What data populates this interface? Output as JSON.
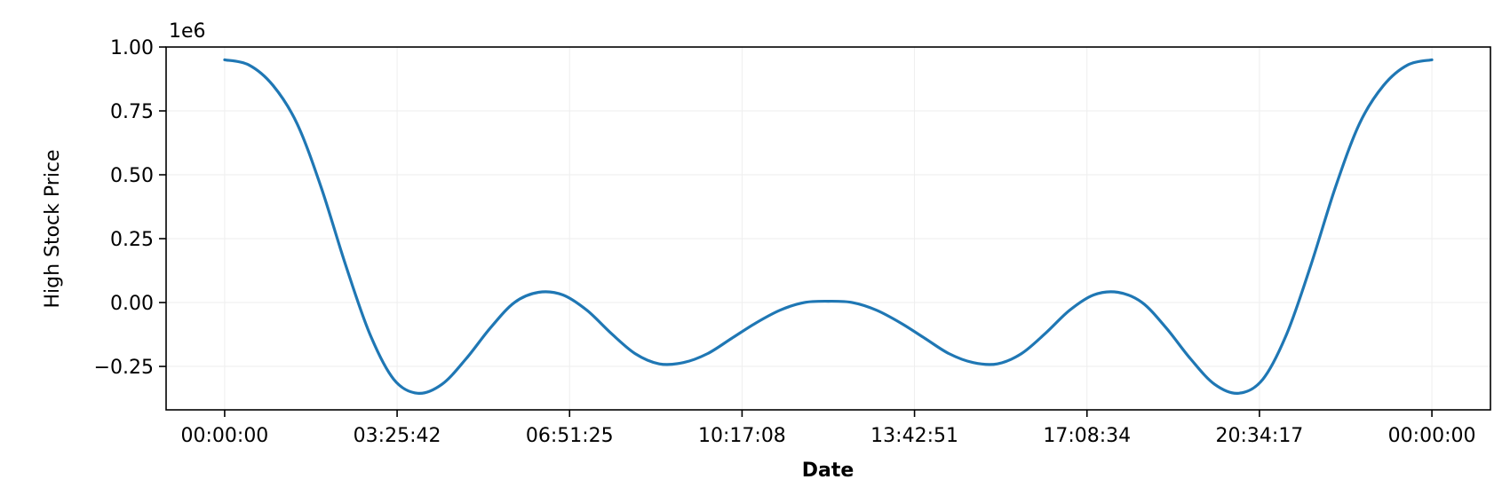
{
  "chart_data": {
    "type": "line",
    "title": "",
    "xlabel": "Date",
    "ylabel": "High Stock Price",
    "offset_text": "1e6",
    "grid": true,
    "xlim": [
      -0.0485,
      1.0485
    ],
    "ylim": [
      -0.42,
      1.0
    ],
    "x_ticks": [
      0,
      0.142857,
      0.285714,
      0.428571,
      0.571429,
      0.714286,
      0.857143,
      1.0
    ],
    "x_tick_labels": [
      "00:00:00",
      "03:25:42",
      "06:51:25",
      "10:17:08",
      "13:42:51",
      "17:08:34",
      "20:34:17",
      "00:00:00"
    ],
    "y_ticks": [
      -0.25,
      0.0,
      0.25,
      0.5,
      0.75,
      1.0
    ],
    "y_tick_labels": [
      "−0.25",
      "0.00",
      "0.25",
      "0.50",
      "0.75",
      "1.00"
    ],
    "series": [
      {
        "name": "High",
        "color": "#1f77b4",
        "x": [
          0.0,
          0.02,
          0.04,
          0.06,
          0.08,
          0.1,
          0.12,
          0.14,
          0.16,
          0.18,
          0.2,
          0.22,
          0.24,
          0.26,
          0.28,
          0.3,
          0.32,
          0.34,
          0.36,
          0.38,
          0.4,
          0.42,
          0.44,
          0.46,
          0.48,
          0.5,
          0.52,
          0.54,
          0.56,
          0.58,
          0.6,
          0.62,
          0.64,
          0.66,
          0.68,
          0.7,
          0.72,
          0.74,
          0.76,
          0.78,
          0.8,
          0.82,
          0.84,
          0.86,
          0.88,
          0.9,
          0.92,
          0.94,
          0.96,
          0.98,
          1.0
        ],
        "y": [
          0.95,
          0.93,
          0.85,
          0.7,
          0.45,
          0.15,
          -0.12,
          -0.3,
          -0.355,
          -0.32,
          -0.22,
          -0.1,
          0.0,
          0.04,
          0.03,
          -0.03,
          -0.12,
          -0.2,
          -0.24,
          -0.235,
          -0.2,
          -0.14,
          -0.08,
          -0.03,
          0.0,
          0.005,
          0.0,
          -0.03,
          -0.08,
          -0.14,
          -0.2,
          -0.235,
          -0.24,
          -0.2,
          -0.12,
          -0.03,
          0.03,
          0.04,
          0.0,
          -0.1,
          -0.22,
          -0.32,
          -0.355,
          -0.3,
          -0.12,
          0.15,
          0.45,
          0.7,
          0.85,
          0.93,
          0.95
        ]
      }
    ]
  }
}
